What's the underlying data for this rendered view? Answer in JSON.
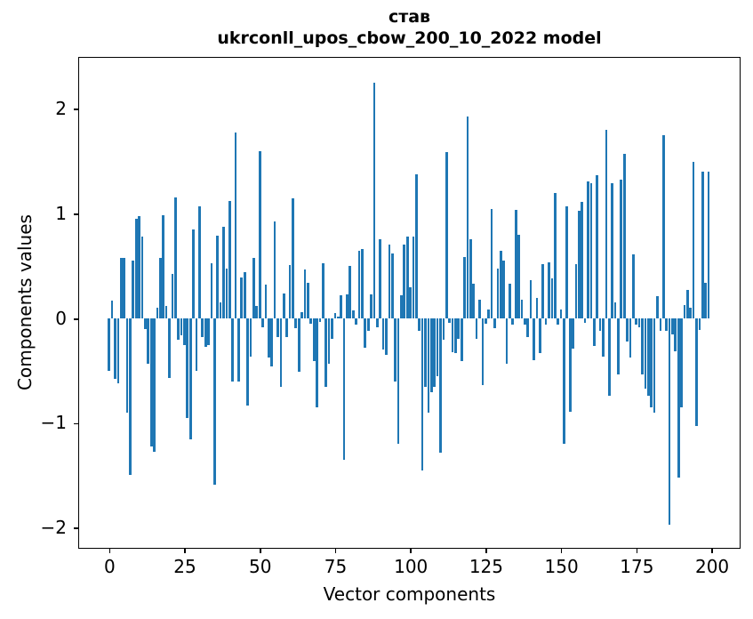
{
  "chart_data": {
    "type": "bar",
    "title": "став",
    "subtitle": "ukrconll_upos_cbow_200_10_2022 model",
    "xlabel": "Vector components",
    "ylabel": "Components values",
    "bar_color": "#1f77b4",
    "background_color": "#ffffff",
    "grid": false,
    "legend": null,
    "xlim": [
      -9.95,
      208.95
    ],
    "ylim": [
      -2.18,
      2.49
    ],
    "x_range": [
      0,
      199
    ],
    "bar_width": 0.8,
    "x_ticks": [
      {
        "v": 0,
        "label": "0"
      },
      {
        "v": 25,
        "label": "25"
      },
      {
        "v": 50,
        "label": "50"
      },
      {
        "v": 75,
        "label": "75"
      },
      {
        "v": 100,
        "label": "100"
      },
      {
        "v": 125,
        "label": "125"
      },
      {
        "v": 150,
        "label": "150"
      },
      {
        "v": 175,
        "label": "175"
      },
      {
        "v": 200,
        "label": "200"
      }
    ],
    "y_ticks": [
      {
        "v": 2,
        "label": "2"
      },
      {
        "v": 1,
        "label": "1"
      },
      {
        "v": 0,
        "label": "0"
      },
      {
        "v": -1,
        "label": "−1"
      },
      {
        "v": -2,
        "label": "−2"
      }
    ],
    "values": [
      -0.5,
      0.17,
      -0.58,
      -0.62,
      0.58,
      0.58,
      -0.9,
      -1.49,
      0.55,
      0.95,
      0.98,
      0.78,
      -0.1,
      -0.43,
      -1.22,
      -1.27,
      0.1,
      0.58,
      0.99,
      0.12,
      -0.57,
      0.43,
      1.16,
      -0.2,
      -0.16,
      -0.25,
      -0.95,
      -1.15,
      0.85,
      -0.5,
      1.07,
      -0.18,
      -0.27,
      -0.25,
      0.53,
      -1.59,
      0.79,
      0.15,
      0.88,
      0.48,
      1.12,
      -0.6,
      1.78,
      -0.6,
      0.39,
      0.44,
      -0.83,
      -0.36,
      0.58,
      0.12,
      1.6,
      -0.08,
      0.32,
      -0.37,
      -0.46,
      0.93,
      -0.18,
      -0.65,
      0.24,
      -0.18,
      0.51,
      1.15,
      -0.09,
      -0.51,
      0.06,
      0.47,
      0.34,
      -0.05,
      -0.41,
      -0.85,
      -0.03,
      0.53,
      -0.65,
      -0.43,
      -0.19,
      0.05,
      0.02,
      0.22,
      -1.35,
      0.23,
      0.5,
      0.08,
      -0.06,
      0.65,
      0.66,
      -0.28,
      -0.12,
      0.23,
      2.25,
      -0.08,
      0.76,
      -0.3,
      -0.35,
      0.71,
      0.62,
      -0.6,
      -1.2,
      0.22,
      0.71,
      0.78,
      0.3,
      0.78,
      1.38,
      -0.12,
      -1.45,
      -0.65,
      -0.9,
      -0.7,
      -0.65,
      -0.55,
      -1.28,
      -0.2,
      1.59,
      -0.04,
      -0.32,
      -0.33,
      -0.19,
      -0.41,
      0.59,
      1.93,
      0.76,
      0.33,
      -0.19,
      0.18,
      -0.64,
      -0.05,
      0.09,
      1.05,
      -0.09,
      0.48,
      0.65,
      0.55,
      -0.43,
      0.33,
      -0.06,
      1.04,
      0.8,
      0.18,
      -0.06,
      -0.18,
      0.37,
      -0.4,
      0.2,
      -0.33,
      0.52,
      -0.06,
      0.54,
      0.38,
      1.2,
      -0.06,
      0.09,
      -1.2,
      1.07,
      -0.89,
      -0.29,
      0.52,
      1.03,
      1.11,
      -0.04,
      1.31,
      1.29,
      -0.26,
      1.37,
      -0.12,
      -0.36,
      1.8,
      -0.74,
      1.29,
      0.15,
      -0.53,
      1.33,
      1.57,
      -0.22,
      -0.37,
      0.61,
      -0.06,
      -0.08,
      -0.53,
      -0.67,
      -0.74,
      -0.85,
      -0.9,
      0.21,
      -0.12,
      1.75,
      -0.12,
      -1.97,
      -0.15,
      -0.31,
      -1.52,
      -0.85,
      0.13,
      0.27,
      0.1,
      1.5,
      -1.03,
      -0.11,
      1.4,
      0.34,
      1.4
    ]
  }
}
